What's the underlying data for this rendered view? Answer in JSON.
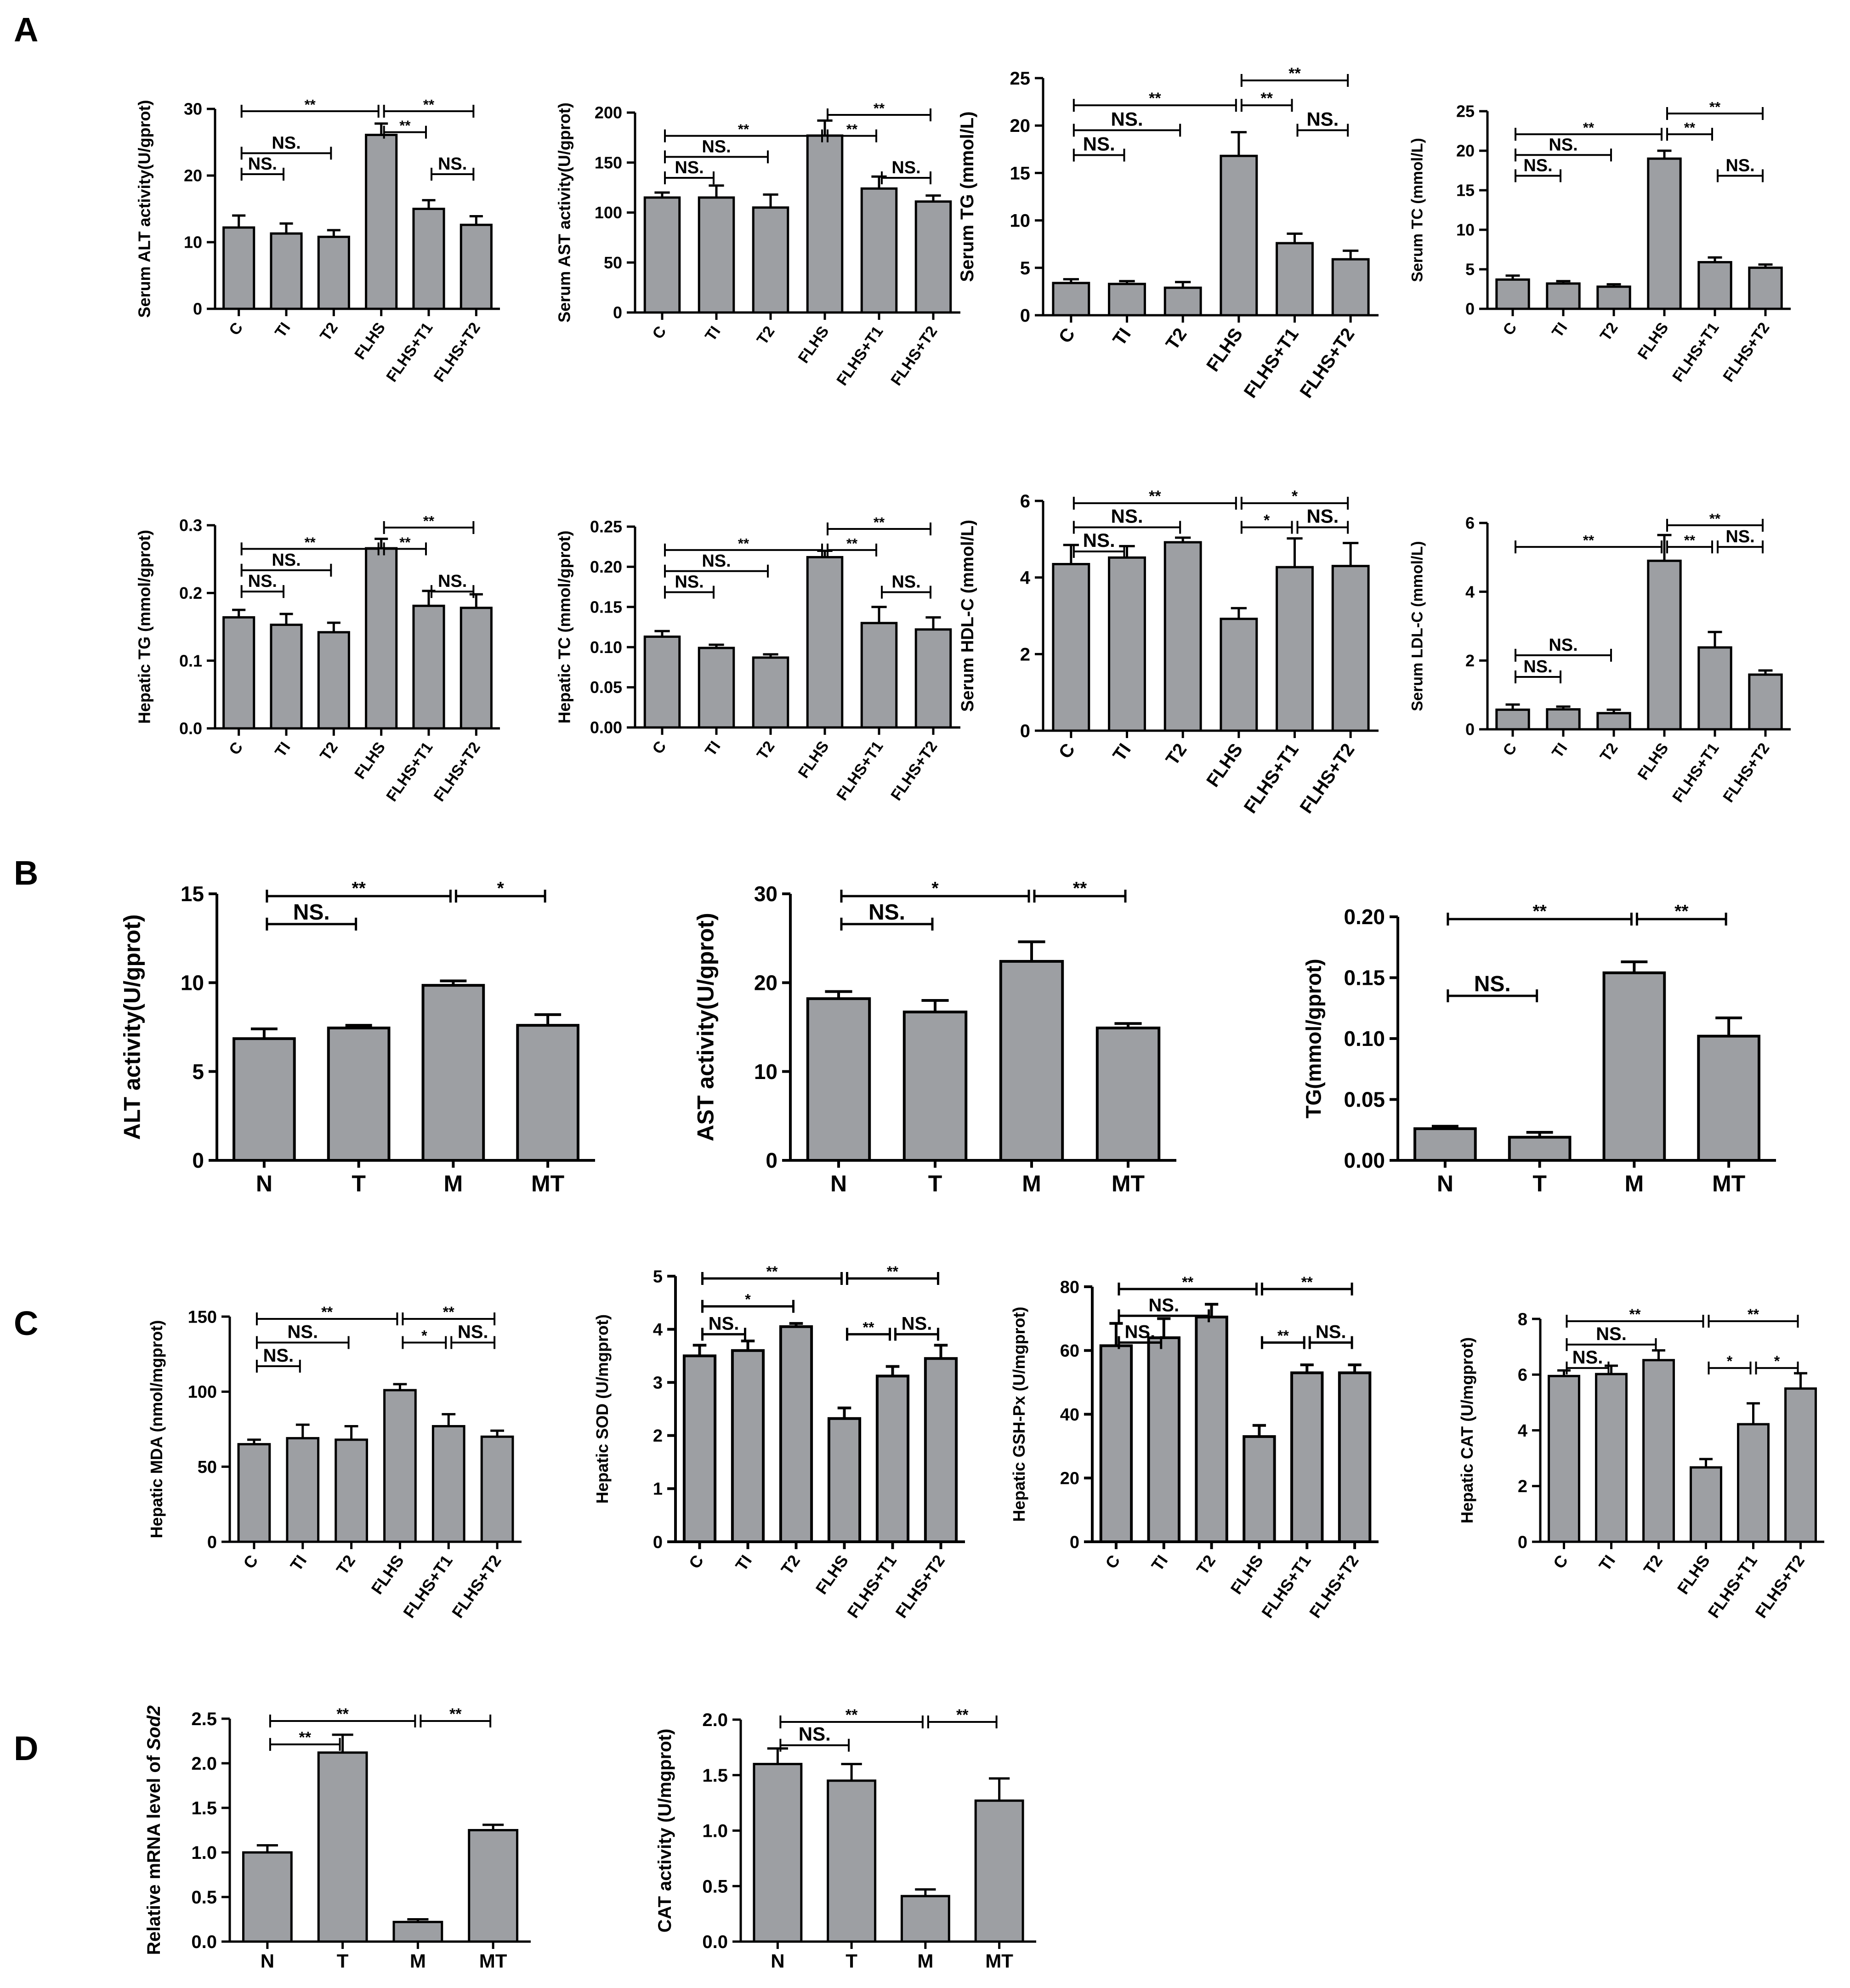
{
  "figure": {
    "panels": [
      {
        "letter": "A"
      },
      {
        "letter": "B"
      },
      {
        "letter": "C"
      },
      {
        "letter": "D"
      }
    ]
  },
  "style": {
    "bar_fill": "#9d9fa3",
    "stroke": "#000000",
    "background": "#ffffff"
  },
  "chart_data": [
    {
      "id": "A1",
      "type": "bar",
      "ylabel": "Serum ALT activity(U/gprot)",
      "categories": [
        "C",
        "TI",
        "T2",
        "FLHS",
        "FLHS+T1",
        "FLHS+T2"
      ],
      "values": [
        12.2,
        11.3,
        10.8,
        26.1,
        15.0,
        12.6
      ],
      "errors": [
        1.8,
        1.5,
        1.0,
        1.7,
        1.3,
        1.3
      ],
      "ylim": [
        0,
        30
      ],
      "yticks": [
        "0",
        "10",
        "20",
        "30"
      ],
      "significance": [
        {
          "from": 0,
          "to": 3,
          "level": 0,
          "label": "**"
        },
        {
          "from": 3,
          "to": 5,
          "level": 0,
          "label": "**"
        },
        {
          "from": 3,
          "to": 4,
          "level": 1,
          "label": "**"
        },
        {
          "from": 0,
          "to": 2,
          "level": 2,
          "label": "NS."
        },
        {
          "from": 0,
          "to": 1,
          "level": 3,
          "label": "NS."
        },
        {
          "from": 4,
          "to": 5,
          "level": 3,
          "label": "NS."
        }
      ]
    },
    {
      "id": "A2",
      "type": "bar",
      "ylabel": "Serum AST activity(U/gprot)",
      "categories": [
        "C",
        "TI",
        "T2",
        "FLHS",
        "FLHS+T1",
        "FLHS+T2"
      ],
      "values": [
        115,
        115,
        105,
        177,
        124,
        111
      ],
      "errors": [
        5,
        12,
        13,
        15,
        12,
        6
      ],
      "ylim": [
        0,
        200
      ],
      "yticks": [
        "0",
        "50",
        "100",
        "150",
        "200"
      ],
      "significance": [
        {
          "from": 3,
          "to": 5,
          "level": 0,
          "label": "**"
        },
        {
          "from": 0,
          "to": 3,
          "level": 1,
          "label": "**"
        },
        {
          "from": 3,
          "to": 4,
          "level": 1,
          "label": "**"
        },
        {
          "from": 0,
          "to": 2,
          "level": 2,
          "label": "NS."
        },
        {
          "from": 0,
          "to": 1,
          "level": 3,
          "label": "NS."
        },
        {
          "from": 4,
          "to": 5,
          "level": 3,
          "label": "NS."
        }
      ]
    },
    {
      "id": "A3",
      "type": "bar",
      "ylabel": "Serum TG (mmol/L)",
      "categories": [
        "C",
        "TI",
        "T2",
        "FLHS",
        "FLHS+T1",
        "FLHS+T2"
      ],
      "values": [
        3.4,
        3.3,
        2.9,
        16.8,
        7.6,
        5.9
      ],
      "errors": [
        0.4,
        0.3,
        0.6,
        2.5,
        1.0,
        0.9
      ],
      "ylim": [
        0,
        25
      ],
      "yticks": [
        "0",
        "5",
        "10",
        "15",
        "20",
        "25"
      ],
      "significance": [
        {
          "from": 3,
          "to": 5,
          "level": 0,
          "label": "**"
        },
        {
          "from": 0,
          "to": 3,
          "level": 1,
          "label": "**"
        },
        {
          "from": 3,
          "to": 4,
          "level": 1,
          "label": "**"
        },
        {
          "from": 0,
          "to": 2,
          "level": 2,
          "label": "NS."
        },
        {
          "from": 0,
          "to": 1,
          "level": 3,
          "label": "NS."
        },
        {
          "from": 4,
          "to": 5,
          "level": 2,
          "label": "NS."
        }
      ]
    },
    {
      "id": "A4",
      "type": "bar",
      "ylabel": "Serum TC (mmol/L)",
      "categories": [
        "C",
        "TI",
        "T2",
        "FLHS",
        "FLHS+T1",
        "FLHS+T2"
      ],
      "values": [
        3.7,
        3.2,
        2.8,
        19.0,
        5.9,
        5.2
      ],
      "errors": [
        0.5,
        0.3,
        0.3,
        1.0,
        0.6,
        0.4
      ],
      "ylim": [
        0,
        25
      ],
      "yticks": [
        "0",
        "5",
        "10",
        "15",
        "20",
        "25"
      ],
      "significance": [
        {
          "from": 3,
          "to": 5,
          "level": 0,
          "label": "**"
        },
        {
          "from": 0,
          "to": 3,
          "level": 1,
          "label": "**"
        },
        {
          "from": 3,
          "to": 4,
          "level": 1,
          "label": "**"
        },
        {
          "from": 0,
          "to": 2,
          "level": 2,
          "label": "NS."
        },
        {
          "from": 0,
          "to": 1,
          "level": 3,
          "label": "NS."
        },
        {
          "from": 4,
          "to": 5,
          "level": 3,
          "label": "NS."
        }
      ]
    },
    {
      "id": "A5",
      "type": "bar",
      "ylabel": "Hepatic TG (mmol/gprot)",
      "categories": [
        "C",
        "TI",
        "T2",
        "FLHS",
        "FLHS+T1",
        "FLHS+T2"
      ],
      "values": [
        0.164,
        0.153,
        0.142,
        0.266,
        0.181,
        0.178
      ],
      "errors": [
        0.011,
        0.016,
        0.014,
        0.014,
        0.022,
        0.02
      ],
      "ylim": [
        0,
        0.3
      ],
      "yticks": [
        "0.0",
        "0.1",
        "0.2",
        "0.3"
      ],
      "significance": [
        {
          "from": 3,
          "to": 5,
          "level": 0,
          "label": "**"
        },
        {
          "from": 0,
          "to": 3,
          "level": 1,
          "label": "**"
        },
        {
          "from": 3,
          "to": 4,
          "level": 1,
          "label": "**"
        },
        {
          "from": 0,
          "to": 2,
          "level": 2,
          "label": "NS."
        },
        {
          "from": 0,
          "to": 1,
          "level": 3,
          "label": "NS."
        },
        {
          "from": 4,
          "to": 5,
          "level": 3,
          "label": "NS."
        }
      ]
    },
    {
      "id": "A6",
      "type": "bar",
      "ylabel": "Hepatic TC (mmol/gprot)",
      "categories": [
        "C",
        "TI",
        "T2",
        "FLHS",
        "FLHS+T1",
        "FLHS+T2"
      ],
      "values": [
        0.113,
        0.099,
        0.087,
        0.212,
        0.13,
        0.122
      ],
      "errors": [
        0.007,
        0.004,
        0.004,
        0.008,
        0.02,
        0.015
      ],
      "ylim": [
        0,
        0.25
      ],
      "yticks": [
        "0.00",
        "0.05",
        "0.10",
        "0.15",
        "0.20",
        "0.25"
      ],
      "significance": [
        {
          "from": 3,
          "to": 5,
          "level": 0,
          "label": "**"
        },
        {
          "from": 0,
          "to": 3,
          "level": 1,
          "label": "**"
        },
        {
          "from": 3,
          "to": 4,
          "level": 1,
          "label": "**"
        },
        {
          "from": 0,
          "to": 2,
          "level": 2,
          "label": "NS."
        },
        {
          "from": 0,
          "to": 1,
          "level": 3,
          "label": "NS."
        },
        {
          "from": 4,
          "to": 5,
          "level": 3,
          "label": "NS."
        }
      ]
    },
    {
      "id": "A7",
      "type": "bar",
      "ylabel": "Serum HDL-C (mmol/L)",
      "categories": [
        "C",
        "TI",
        "T2",
        "FLHS",
        "FLHS+T1",
        "FLHS+T2"
      ],
      "values": [
        4.35,
        4.52,
        4.92,
        2.92,
        4.27,
        4.3
      ],
      "errors": [
        0.5,
        0.3,
        0.12,
        0.28,
        0.75,
        0.6
      ],
      "ylim": [
        0,
        6
      ],
      "yticks": [
        "0",
        "2",
        "4",
        "6"
      ],
      "significance": [
        {
          "from": 0,
          "to": 3,
          "level": 0,
          "label": "**"
        },
        {
          "from": 3,
          "to": 5,
          "level": 0,
          "label": "*"
        },
        {
          "from": 0,
          "to": 2,
          "level": 1,
          "label": "NS."
        },
        {
          "from": 3,
          "to": 4,
          "level": 1,
          "label": "*"
        },
        {
          "from": 4,
          "to": 5,
          "level": 1,
          "label": "NS."
        },
        {
          "from": 0,
          "to": 1,
          "level": 2,
          "label": "NS."
        }
      ]
    },
    {
      "id": "A8",
      "type": "bar",
      "ylabel": "Serum LDL-C (mmol/L)",
      "categories": [
        "C",
        "TI",
        "T2",
        "FLHS",
        "FLHS+T1",
        "FLHS+T2"
      ],
      "values": [
        0.57,
        0.58,
        0.47,
        4.9,
        2.38,
        1.59
      ],
      "errors": [
        0.15,
        0.08,
        0.1,
        0.75,
        0.45,
        0.12
      ],
      "ylim": [
        0,
        6
      ],
      "yticks": [
        "0",
        "2",
        "4",
        "6"
      ],
      "significance": [
        {
          "from": 3,
          "to": 5,
          "level": 0,
          "label": "**"
        },
        {
          "from": 0,
          "to": 3,
          "level": 1,
          "label": "**"
        },
        {
          "from": 3,
          "to": 4,
          "level": 1,
          "label": "**"
        },
        {
          "from": 4,
          "to": 5,
          "level": 1,
          "label": "NS."
        },
        {
          "from": 0,
          "to": 2,
          "level": 6,
          "label": "NS."
        },
        {
          "from": 0,
          "to": 1,
          "level": 7,
          "label": "NS."
        }
      ]
    },
    {
      "id": "B1",
      "type": "bar",
      "ylabel": "ALT activity(U/gprot)",
      "categories": [
        "N",
        "T",
        "M",
        "MT"
      ],
      "values": [
        6.85,
        7.45,
        9.85,
        7.6
      ],
      "errors": [
        0.55,
        0.15,
        0.25,
        0.6
      ],
      "ylim": [
        0,
        15
      ],
      "yticks": [
        "0",
        "5",
        "10",
        "15"
      ],
      "significance": [
        {
          "from": 0,
          "to": 2,
          "level": 0,
          "label": "**"
        },
        {
          "from": 2,
          "to": 3,
          "level": 0,
          "label": "*"
        },
        {
          "from": 0,
          "to": 1,
          "level": 1,
          "label": "NS."
        }
      ]
    },
    {
      "id": "B2",
      "type": "bar",
      "ylabel": "AST activity(U/gprot)",
      "categories": [
        "N",
        "T",
        "M",
        "MT"
      ],
      "values": [
        18.2,
        16.7,
        22.4,
        14.9
      ],
      "errors": [
        0.8,
        1.3,
        2.2,
        0.5
      ],
      "ylim": [
        0,
        30
      ],
      "yticks": [
        "0",
        "10",
        "20",
        "30"
      ],
      "significance": [
        {
          "from": 0,
          "to": 2,
          "level": 0,
          "label": "*"
        },
        {
          "from": 2,
          "to": 3,
          "level": 0,
          "label": "**"
        },
        {
          "from": 0,
          "to": 1,
          "level": 1,
          "label": "NS."
        }
      ]
    },
    {
      "id": "B3",
      "type": "bar",
      "ylabel": "TG(mmol/gprot)",
      "categories": [
        "N",
        "T",
        "M",
        "MT"
      ],
      "values": [
        0.026,
        0.019,
        0.154,
        0.102
      ],
      "errors": [
        0.002,
        0.004,
        0.009,
        0.015
      ],
      "ylim": [
        0,
        0.2
      ],
      "yticks": [
        "0.00",
        "0.05",
        "0.10",
        "0.15",
        "0.20"
      ],
      "significance": [
        {
          "from": 0,
          "to": 2,
          "level": 0,
          "label": "**"
        },
        {
          "from": 2,
          "to": 3,
          "level": 0,
          "label": "**"
        },
        {
          "from": 0,
          "to": 1,
          "level": 3,
          "label": "NS."
        }
      ]
    },
    {
      "id": "C1",
      "type": "bar",
      "ylabel": "Hepatic MDA (nmol/mgprot)",
      "categories": [
        "C",
        "TI",
        "T2",
        "FLHS",
        "FLHS+T1",
        "FLHS+T2"
      ],
      "values": [
        65,
        69,
        68,
        101,
        77,
        70
      ],
      "errors": [
        3,
        9,
        9,
        4,
        8,
        4
      ],
      "ylim": [
        0,
        150
      ],
      "yticks": [
        "0",
        "50",
        "100",
        "150"
      ],
      "significance": [
        {
          "from": 0,
          "to": 3,
          "level": 0,
          "label": "**"
        },
        {
          "from": 3,
          "to": 5,
          "level": 0,
          "label": "**"
        },
        {
          "from": 0,
          "to": 2,
          "level": 1,
          "label": "NS."
        },
        {
          "from": 3,
          "to": 4,
          "level": 1,
          "label": "*"
        },
        {
          "from": 4,
          "to": 5,
          "level": 1,
          "label": "NS."
        },
        {
          "from": 0,
          "to": 1,
          "level": 2,
          "label": "NS."
        }
      ]
    },
    {
      "id": "C2",
      "type": "bar",
      "ylabel": "Hepatic SOD (U/mgprot)",
      "categories": [
        "C",
        "TI",
        "T2",
        "FLHS",
        "FLHS+T1",
        "FLHS+T2"
      ],
      "values": [
        3.5,
        3.6,
        4.05,
        2.32,
        3.12,
        3.45
      ],
      "errors": [
        0.2,
        0.18,
        0.06,
        0.2,
        0.18,
        0.25
      ],
      "ylim": [
        0,
        5
      ],
      "yticks": [
        "0",
        "1",
        "2",
        "3",
        "4",
        "5"
      ],
      "significance": [
        {
          "from": 0,
          "to": 3,
          "level": 0,
          "label": "**"
        },
        {
          "from": 3,
          "to": 5,
          "level": 0,
          "label": "**"
        },
        {
          "from": 0,
          "to": 2,
          "level": 1,
          "label": "*"
        },
        {
          "from": 0,
          "to": 1,
          "level": 2,
          "label": "NS."
        },
        {
          "from": 3,
          "to": 4,
          "level": 2,
          "label": "**"
        },
        {
          "from": 4,
          "to": 5,
          "level": 2,
          "label": "NS."
        }
      ]
    },
    {
      "id": "C3",
      "type": "bar",
      "ylabel": "Hepatic GSH-Px (U/mgprot)",
      "categories": [
        "C",
        "TI",
        "T2",
        "FLHS",
        "FLHS+T1",
        "FLHS+T2"
      ],
      "values": [
        61.5,
        64,
        70.5,
        33,
        53,
        53
      ],
      "errors": [
        7,
        6,
        4,
        3.5,
        2.5,
        2.5
      ],
      "ylim": [
        0,
        80
      ],
      "yticks": [
        "0",
        "20",
        "40",
        "60",
        "80"
      ],
      "significance": [
        {
          "from": 0,
          "to": 3,
          "level": 0,
          "label": "**"
        },
        {
          "from": 3,
          "to": 5,
          "level": 0,
          "label": "**"
        },
        {
          "from": 0,
          "to": 2,
          "level": 1,
          "label": "NS."
        },
        {
          "from": 0,
          "to": 1,
          "level": 2,
          "label": "NS."
        },
        {
          "from": 3,
          "to": 4,
          "level": 2,
          "label": "**"
        },
        {
          "from": 4,
          "to": 5,
          "level": 2,
          "label": "NS."
        }
      ]
    },
    {
      "id": "C4",
      "type": "bar",
      "ylabel": "Hepatic CAT (U/mgprot)",
      "categories": [
        "C",
        "TI",
        "T2",
        "FLHS",
        "FLHS+T1",
        "FLHS+T2"
      ],
      "values": [
        5.95,
        6.02,
        6.52,
        2.67,
        4.22,
        5.5
      ],
      "errors": [
        0.2,
        0.3,
        0.35,
        0.3,
        0.75,
        0.55
      ],
      "ylim": [
        0,
        8
      ],
      "yticks": [
        "0",
        "2",
        "4",
        "6",
        "8"
      ],
      "significance": [
        {
          "from": 0,
          "to": 3,
          "level": 0,
          "label": "**"
        },
        {
          "from": 3,
          "to": 5,
          "level": 0,
          "label": "**"
        },
        {
          "from": 0,
          "to": 2,
          "level": 1,
          "label": "NS."
        },
        {
          "from": 0,
          "to": 1,
          "level": 2,
          "label": "NS."
        },
        {
          "from": 3,
          "to": 4,
          "level": 2,
          "label": "*"
        },
        {
          "from": 4,
          "to": 5,
          "level": 2,
          "label": "*"
        }
      ]
    },
    {
      "id": "D1",
      "type": "bar",
      "ylabel": "Relative mRNA level of Sod2",
      "categories": [
        "N",
        "T",
        "M",
        "MT"
      ],
      "values": [
        1.0,
        2.12,
        0.22,
        1.25
      ],
      "errors": [
        0.08,
        0.2,
        0.03,
        0.06
      ],
      "ylim": [
        0,
        2.5
      ],
      "yticks": [
        "0.0",
        "0.5",
        "1.0",
        "1.5",
        "2.0",
        "2.5"
      ],
      "significance": [
        {
          "from": 0,
          "to": 2,
          "level": 0,
          "label": "**"
        },
        {
          "from": 2,
          "to": 3,
          "level": 0,
          "label": "**"
        },
        {
          "from": 0,
          "to": 1,
          "level": 1,
          "label": "**"
        }
      ]
    },
    {
      "id": "D2",
      "type": "bar",
      "ylabel": "CAT activity (U/mgprot)",
      "categories": [
        "N",
        "T",
        "M",
        "MT"
      ],
      "values": [
        1.6,
        1.45,
        0.41,
        1.27
      ],
      "errors": [
        0.14,
        0.15,
        0.06,
        0.2
      ],
      "ylim": [
        0,
        2.0
      ],
      "yticks": [
        "0.0",
        "0.5",
        "1.0",
        "1.5",
        "2.0"
      ],
      "significance": [
        {
          "from": 0,
          "to": 2,
          "level": 0,
          "label": "**"
        },
        {
          "from": 2,
          "to": 3,
          "level": 0,
          "label": "**"
        },
        {
          "from": 0,
          "to": 1,
          "level": 1,
          "label": "NS."
        }
      ]
    }
  ]
}
